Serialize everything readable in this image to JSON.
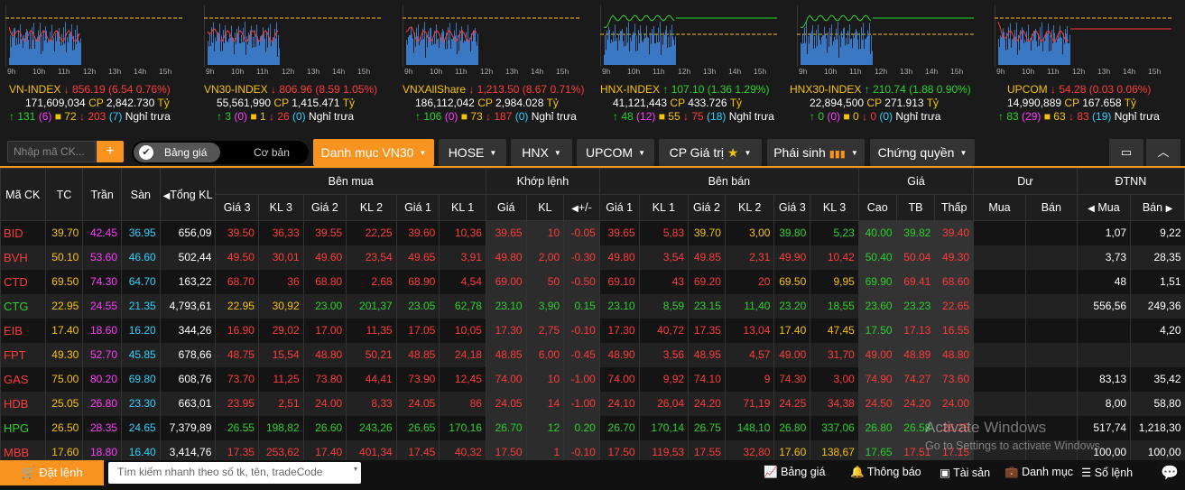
{
  "indices": [
    {
      "name": "VN-INDEX",
      "arrow": "↓",
      "value": "856.19",
      "change": "(6.54 0.76%)",
      "dir": "down",
      "vol": "171,609,034",
      "cp_label": "CP",
      "cp": "2,842.730",
      "unit": "Tỷ",
      "up": "131",
      "ceil": "(6)",
      "ref": "72",
      "down": "203",
      "floor": "(7)",
      "status": "Nghỉ trưa",
      "chart": "red"
    },
    {
      "name": "VN30-INDEX",
      "arrow": "↓",
      "value": "806.96",
      "change": "(8.59 1.05%)",
      "dir": "down",
      "vol": "55,561,990",
      "cp_label": "CP",
      "cp": "1,415.471",
      "unit": "Tỷ",
      "up": "3",
      "ceil": "(0)",
      "ref": "1",
      "down": "26",
      "floor": "(0)",
      "status": "Nghỉ trưa",
      "chart": "red"
    },
    {
      "name": "VNXAllShare",
      "arrow": "↓",
      "value": "1,213.50",
      "change": "(8.67 0.71%)",
      "dir": "down",
      "vol": "186,112,042",
      "cp_label": "CP",
      "cp": "2,984.028",
      "unit": "Tỷ",
      "up": "106",
      "ceil": "(0)",
      "ref": "73",
      "down": "187",
      "floor": "(0)",
      "status": "Nghỉ trưa",
      "chart": "red"
    },
    {
      "name": "HNX-INDEX",
      "arrow": "↑",
      "value": "107.10",
      "change": "(1.36 1.29%)",
      "dir": "up",
      "vol": "41,121,443",
      "cp_label": "CP",
      "cp": "433.726",
      "unit": "Tỷ",
      "up": "48",
      "ceil": "(12)",
      "ref": "55",
      "down": "75",
      "floor": "(18)",
      "status": "Nghỉ trưa",
      "chart": "green"
    },
    {
      "name": "HNX30-INDEX",
      "arrow": "↑",
      "value": "210.74",
      "change": "(1.88 0.90%)",
      "dir": "up",
      "vol": "22,894,500",
      "cp_label": "CP",
      "cp": "271.913",
      "unit": "Tỷ",
      "up": "0",
      "ceil": "(0)",
      "ref": "0",
      "down": "0",
      "floor": "(0)",
      "status": "Nghỉ trưa",
      "chart": "green"
    },
    {
      "name": "UPCOM",
      "arrow": "↓",
      "value": "54.28",
      "change": "(0.03 0.06%)",
      "dir": "down",
      "vol": "14,990,889",
      "cp_label": "CP",
      "cp": "167.658",
      "unit": "Tỷ",
      "up": "83",
      "ceil": "(29)",
      "ref": "63",
      "down": "83",
      "floor": "(19)",
      "status": "Nghỉ trưa",
      "chart": "mixed"
    }
  ],
  "hours": [
    "9h",
    "10h",
    "11h",
    "12h",
    "13h",
    "14h",
    "15h"
  ],
  "toolbar": {
    "search_placeholder": "Nhập mã CK...",
    "plus": "+",
    "toggle_on": "Bảng giá",
    "toggle_off": "Cơ bản",
    "tabs": [
      "Danh mục VN30",
      "HOSE",
      "HNX",
      "UPCOM",
      "CP Giá trị",
      "Phái sinh",
      "Chứng quyền"
    ]
  },
  "table": {
    "group_headers": {
      "buy": "Bên mua",
      "match": "Khớp lệnh",
      "sell": "Bên bán",
      "price": "Giá",
      "residual": "Dư",
      "foreign": "ĐTNN"
    },
    "headers": {
      "sym": "Mã CK",
      "tc": "TC",
      "tran": "Trần",
      "san": "Sàn",
      "tong": "Tổng KL",
      "g3": "Giá 3",
      "kl3": "KL 3",
      "g2": "Giá 2",
      "kl2": "KL 2",
      "g1": "Giá 1",
      "kl1": "KL 1",
      "mg": "Giá",
      "mkl": "KL",
      "mchg": "+/-",
      "sg1": "Giá 1",
      "skl1": "KL 1",
      "sg2": "Giá 2",
      "skl2": "KL 2",
      "sg3": "Giá 3",
      "skl3": "KL 3",
      "cao": "Cao",
      "tb": "TB",
      "thap": "Thấp",
      "dmua": "Mua",
      "dban": "Bán",
      "fmua": "Mua",
      "fban": "Bán"
    },
    "rows": [
      {
        "sym": "BID",
        "c": "r",
        "tc": "39.70",
        "tran": "42.45",
        "san": "36.95",
        "tong": "656,09",
        "b3": [
          "39.50",
          "36,33",
          "r"
        ],
        "b2": [
          "39.55",
          "22,25",
          "r"
        ],
        "b1": [
          "39.60",
          "10,36",
          "r"
        ],
        "m": [
          "39.65",
          "10",
          "-0.05",
          "r"
        ],
        "s1": [
          "39.65",
          "5,83",
          "r"
        ],
        "s2": [
          "39.70",
          "3,00",
          "y"
        ],
        "s3": [
          "39.80",
          "5,23",
          "g"
        ],
        "cao": [
          "40.00",
          "g"
        ],
        "tb": [
          "39.82",
          "g"
        ],
        "thap": [
          "39.40",
          "r"
        ],
        "fmua": "1,07",
        "fban": "9,22"
      },
      {
        "sym": "BVH",
        "c": "r",
        "tc": "50.10",
        "tran": "53.60",
        "san": "46.60",
        "tong": "502,44",
        "b3": [
          "49.50",
          "30,01",
          "r"
        ],
        "b2": [
          "49.60",
          "23,54",
          "r"
        ],
        "b1": [
          "49.65",
          "3,91",
          "r"
        ],
        "m": [
          "49.80",
          "2,00",
          "-0.30",
          "r"
        ],
        "s1": [
          "49.80",
          "3,54",
          "r"
        ],
        "s2": [
          "49.85",
          "2,31",
          "r"
        ],
        "s3": [
          "49.90",
          "10,42",
          "r"
        ],
        "cao": [
          "50.40",
          "g"
        ],
        "tb": [
          "50.04",
          "r"
        ],
        "thap": [
          "49.30",
          "r"
        ],
        "fmua": "3,73",
        "fban": "28,35"
      },
      {
        "sym": "CTD",
        "c": "r",
        "tc": "69.50",
        "tran": "74.30",
        "san": "64.70",
        "tong": "163,22",
        "b3": [
          "68.70",
          "36",
          "r"
        ],
        "b2": [
          "68.80",
          "2,68",
          "r"
        ],
        "b1": [
          "68.90",
          "4,54",
          "r"
        ],
        "m": [
          "69.00",
          "50",
          "-0.50",
          "r"
        ],
        "s1": [
          "69.10",
          "43",
          "r"
        ],
        "s2": [
          "69.20",
          "20",
          "r"
        ],
        "s3": [
          "69.50",
          "9,95",
          "y"
        ],
        "cao": [
          "69.90",
          "g"
        ],
        "tb": [
          "69.41",
          "r"
        ],
        "thap": [
          "68.60",
          "r"
        ],
        "fmua": "48",
        "fban": "1,51"
      },
      {
        "sym": "CTG",
        "c": "g",
        "tc": "22.95",
        "tran": "24.55",
        "san": "21.35",
        "tong": "4,793,61",
        "b3": [
          "22.95",
          "30,92",
          "y"
        ],
        "b2": [
          "23.00",
          "201,37",
          "g"
        ],
        "b1": [
          "23.05",
          "62,78",
          "g"
        ],
        "m": [
          "23.10",
          "3,90",
          "0.15",
          "g"
        ],
        "s1": [
          "23.10",
          "8,59",
          "g"
        ],
        "s2": [
          "23.15",
          "11,40",
          "g"
        ],
        "s3": [
          "23.20",
          "18,55",
          "g"
        ],
        "cao": [
          "23.60",
          "g"
        ],
        "tb": [
          "23.23",
          "g"
        ],
        "thap": [
          "22.65",
          "r"
        ],
        "fmua": "556,56",
        "fban": "249,36"
      },
      {
        "sym": "EIB",
        "c": "r",
        "tc": "17.40",
        "tran": "18.60",
        "san": "16.20",
        "tong": "344,26",
        "b3": [
          "16.90",
          "29,02",
          "r"
        ],
        "b2": [
          "17.00",
          "11,35",
          "r"
        ],
        "b1": [
          "17.05",
          "10,05",
          "r"
        ],
        "m": [
          "17.30",
          "2,75",
          "-0.10",
          "r"
        ],
        "s1": [
          "17.30",
          "40,72",
          "r"
        ],
        "s2": [
          "17.35",
          "13,04",
          "r"
        ],
        "s3": [
          "17.40",
          "47,45",
          "y"
        ],
        "cao": [
          "17.50",
          "g"
        ],
        "tb": [
          "17.13",
          "r"
        ],
        "thap": [
          "16.55",
          "r"
        ],
        "fmua": "",
        "fban": "4,20"
      },
      {
        "sym": "FPT",
        "c": "r",
        "tc": "49.30",
        "tran": "52.70",
        "san": "45.85",
        "tong": "678,66",
        "b3": [
          "48.75",
          "15,54",
          "r"
        ],
        "b2": [
          "48.80",
          "50,21",
          "r"
        ],
        "b1": [
          "48.85",
          "24,18",
          "r"
        ],
        "m": [
          "48.85",
          "6,00",
          "-0.45",
          "r"
        ],
        "s1": [
          "48.90",
          "3,56",
          "r"
        ],
        "s2": [
          "48.95",
          "4,57",
          "r"
        ],
        "s3": [
          "49.00",
          "31,70",
          "r"
        ],
        "cao": [
          "49.00",
          "r"
        ],
        "tb": [
          "48.89",
          "r"
        ],
        "thap": [
          "48.80",
          "r"
        ],
        "fmua": "",
        "fban": ""
      },
      {
        "sym": "GAS",
        "c": "r",
        "tc": "75.00",
        "tran": "80.20",
        "san": "69.80",
        "tong": "608,76",
        "b3": [
          "73.70",
          "11,25",
          "r"
        ],
        "b2": [
          "73.80",
          "44,41",
          "r"
        ],
        "b1": [
          "73.90",
          "12,45",
          "r"
        ],
        "m": [
          "74.00",
          "10",
          "-1.00",
          "r"
        ],
        "s1": [
          "74.00",
          "9,92",
          "r"
        ],
        "s2": [
          "74.10",
          "9",
          "r"
        ],
        "s3": [
          "74.30",
          "3,00",
          "r"
        ],
        "cao": [
          "74.90",
          "r"
        ],
        "tb": [
          "74.27",
          "r"
        ],
        "thap": [
          "73.60",
          "r"
        ],
        "fmua": "83,13",
        "fban": "35,42"
      },
      {
        "sym": "HDB",
        "c": "r",
        "tc": "25.05",
        "tran": "26.80",
        "san": "23.30",
        "tong": "663,01",
        "b3": [
          "23.95",
          "2,51",
          "r"
        ],
        "b2": [
          "24.00",
          "8,33",
          "r"
        ],
        "b1": [
          "24.05",
          "86",
          "r"
        ],
        "m": [
          "24.05",
          "14",
          "-1.00",
          "r"
        ],
        "s1": [
          "24.10",
          "26,04",
          "r"
        ],
        "s2": [
          "24.20",
          "71,19",
          "r"
        ],
        "s3": [
          "24.25",
          "34,38",
          "r"
        ],
        "cao": [
          "24.50",
          "r"
        ],
        "tb": [
          "24.20",
          "r"
        ],
        "thap": [
          "24.00",
          "r"
        ],
        "fmua": "8,00",
        "fban": "58,80"
      },
      {
        "sym": "HPG",
        "c": "g",
        "tc": "26.50",
        "tran": "28.35",
        "san": "24.65",
        "tong": "7,379,89",
        "b3": [
          "26.55",
          "198,82",
          "g"
        ],
        "b2": [
          "26.60",
          "243,26",
          "g"
        ],
        "b1": [
          "26.65",
          "170,16",
          "g"
        ],
        "m": [
          "26.70",
          "12",
          "0.20",
          "g"
        ],
        "s1": [
          "26.70",
          "170,14",
          "g"
        ],
        "s2": [
          "26.75",
          "148,10",
          "g"
        ],
        "s3": [
          "26.80",
          "337,06",
          "g"
        ],
        "cao": [
          "26.80",
          "g"
        ],
        "tb": [
          "26.58",
          "g"
        ],
        "thap": [
          "26.25",
          "r"
        ],
        "fmua": "517,74",
        "fban": "1,218,30"
      },
      {
        "sym": "MBB",
        "c": "r",
        "tc": "17.60",
        "tran": "18.80",
        "san": "16.40",
        "tong": "3,414,76",
        "b3": [
          "17.35",
          "253,62",
          "r"
        ],
        "b2": [
          "17.40",
          "401,34",
          "r"
        ],
        "b1": [
          "17.45",
          "40,32",
          "r"
        ],
        "m": [
          "17.50",
          "1",
          "-0.10",
          "r"
        ],
        "s1": [
          "17.50",
          "119,53",
          "r"
        ],
        "s2": [
          "17.55",
          "32,80",
          "r"
        ],
        "s3": [
          "17.60",
          "138,67",
          "y"
        ],
        "cao": [
          "17.65",
          "g"
        ],
        "tb": [
          "17.51",
          "r"
        ],
        "thap": [
          "17.15",
          "r"
        ],
        "fmua": "100,00",
        "fban": "100,00"
      }
    ]
  },
  "bottom": {
    "order": "Đặt lệnh",
    "search": "Tìm kiếm nhanh theo số tk, tên, tradeCode",
    "items": [
      "Bảng giá",
      "Thông báo",
      "Tài sản",
      "Danh mục",
      "Sổ lệnh"
    ]
  },
  "watermark": {
    "title": "Activate Windows",
    "sub": "Go to Settings to activate Windows."
  }
}
